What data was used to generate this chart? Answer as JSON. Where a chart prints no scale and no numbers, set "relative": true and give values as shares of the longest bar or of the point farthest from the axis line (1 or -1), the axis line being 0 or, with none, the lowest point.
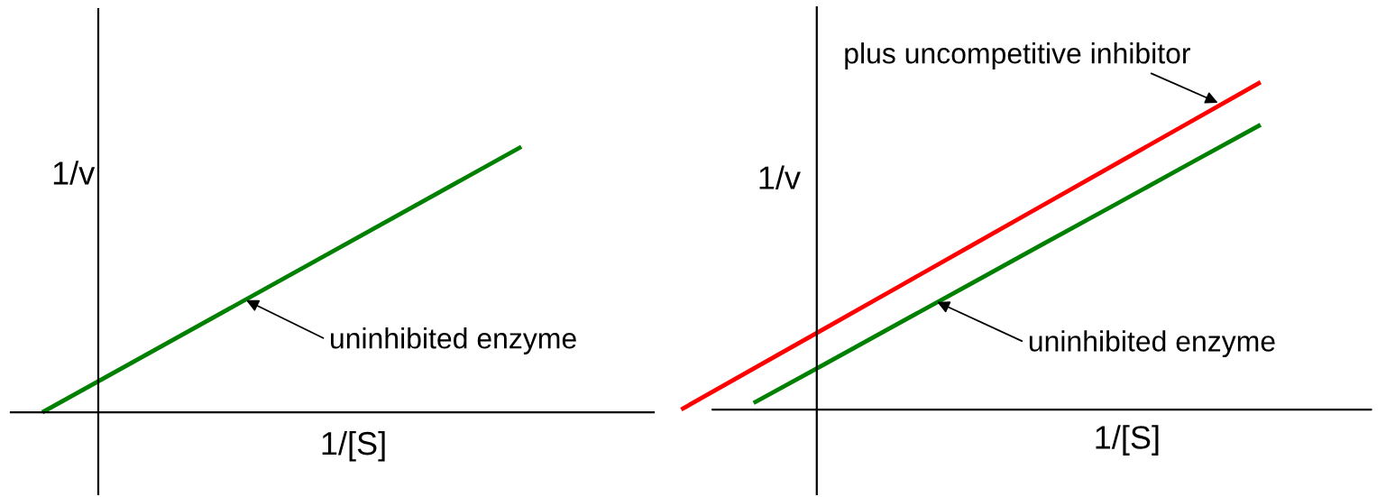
{
  "chart_data": [
    {
      "type": "line",
      "relative": true,
      "xlabel": "1/[S]",
      "ylabel": "1/v",
      "categories": [
        null,
        null
      ],
      "series": [
        {
          "color": "#008000",
          "values": [
            0,
            1
          ]
        }
      ],
      "annotations": [
        "uninhibited enzyme"
      ]
    },
    {
      "type": "line",
      "relative": true,
      "xlabel": "1/[S]",
      "ylabel": "1/v",
      "categories": [
        null,
        null,
        null,
        null,
        null,
        null,
        null,
        null,
        null
      ],
      "series": [
        {
          "color": "#ff0000",
          "values": [
            0,
            0.125,
            0.25,
            0.375,
            0.5,
            0.625,
            0.75,
            0.875,
            1
          ]
        },
        {
          "color": "#008000",
          "values": [
            null,
            0.02,
            0.141,
            0.263,
            0.384,
            0.506,
            0.627,
            0.749,
            0.87
          ]
        }
      ],
      "annotations": [
        "plus uncompetitive inhibitor",
        "uninhibited enzyme"
      ]
    }
  ]
}
